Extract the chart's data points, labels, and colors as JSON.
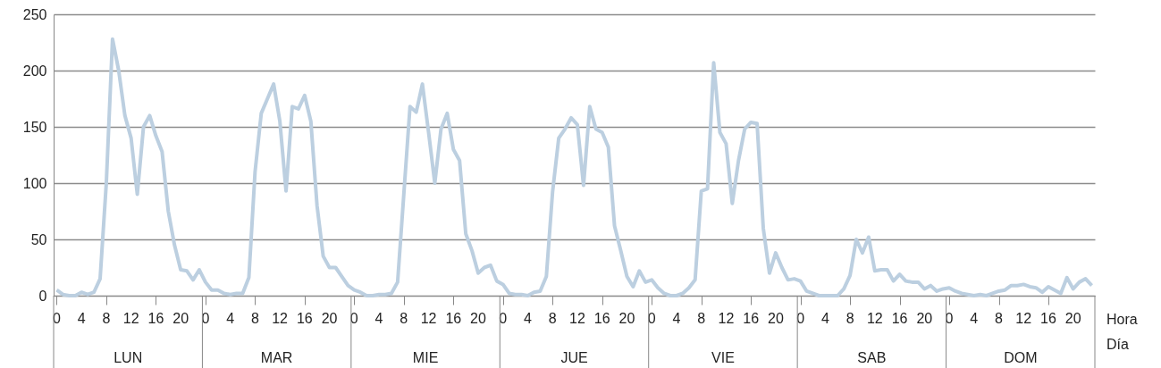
{
  "chart_data": {
    "type": "line",
    "categories": [
      "0",
      null,
      null,
      null,
      "4",
      null,
      null,
      null,
      "8",
      null,
      null,
      null,
      "12",
      null,
      null,
      null,
      "16",
      null,
      null,
      null,
      "20",
      null,
      null,
      null,
      "0",
      null,
      null,
      null,
      "4",
      null,
      null,
      null,
      "8",
      null,
      null,
      null,
      "12",
      null,
      null,
      null,
      "16",
      null,
      null,
      null,
      "20",
      null,
      null,
      null,
      "0",
      null,
      null,
      null,
      "4",
      null,
      null,
      null,
      "8",
      null,
      null,
      null,
      "12",
      null,
      null,
      null,
      "16",
      null,
      null,
      null,
      "20",
      null,
      null,
      null,
      "0",
      null,
      null,
      null,
      "4",
      null,
      null,
      null,
      "8",
      null,
      null,
      null,
      "12",
      null,
      null,
      null,
      "16",
      null,
      null,
      null,
      "20",
      null,
      null,
      null,
      "0",
      null,
      null,
      null,
      "4",
      null,
      null,
      null,
      "8",
      null,
      null,
      null,
      "12",
      null,
      null,
      null,
      "16",
      null,
      null,
      null,
      "20",
      null,
      null,
      null,
      "0",
      null,
      null,
      null,
      "4",
      null,
      null,
      null,
      "8",
      null,
      null,
      null,
      "12",
      null,
      null,
      null,
      "16",
      null,
      null,
      null,
      "20",
      null,
      null,
      null,
      "0",
      null,
      null,
      null,
      "4",
      null,
      null,
      null,
      "8",
      null,
      null,
      null,
      "12",
      null,
      null,
      null,
      "16",
      null,
      null,
      null,
      "20",
      null,
      null,
      null
    ],
    "series": [
      {
        "color": "#bccfe0",
        "values": [
          5,
          1,
          0,
          0,
          3,
          1,
          3,
          15,
          100,
          228,
          200,
          160,
          140,
          90,
          150,
          160,
          142,
          128,
          75,
          45,
          23,
          22,
          14,
          23,
          12,
          5,
          5,
          2,
          1,
          2,
          2,
          16,
          110,
          162,
          175,
          188,
          155,
          93,
          168,
          166,
          178,
          155,
          80,
          35,
          25,
          25,
          17,
          9,
          5,
          3,
          0,
          0,
          1,
          1,
          2,
          12,
          90,
          168,
          163,
          188,
          145,
          100,
          148,
          162,
          130,
          120,
          55,
          40,
          20,
          25,
          27,
          13,
          10,
          2,
          1,
          1,
          0,
          3,
          4,
          17,
          92,
          140,
          148,
          158,
          152,
          98,
          168,
          148,
          145,
          132,
          62,
          40,
          17,
          8,
          22,
          12,
          14,
          7,
          2,
          0,
          0,
          2,
          7,
          14,
          93,
          95,
          207,
          145,
          135,
          82,
          120,
          148,
          154,
          153,
          60,
          20,
          38,
          25,
          14,
          15,
          13,
          4,
          2,
          0,
          0,
          0,
          0,
          6,
          18,
          50,
          38,
          52,
          22,
          23,
          23,
          13,
          19,
          13,
          12,
          12,
          6,
          9,
          4,
          6,
          7,
          4,
          2,
          1,
          0,
          1,
          0,
          2,
          4,
          5,
          9,
          9,
          10,
          8,
          7,
          3,
          8,
          5,
          2,
          16,
          6,
          12,
          15,
          9
        ]
      }
    ],
    "xlabel": "Hora",
    "annotations": [
      "LUN",
      "MAR",
      "MIE",
      "JUE",
      "VIE",
      "SAB",
      "DOM",
      "Día"
    ],
    "ylim": [
      0,
      250
    ],
    "yticks": [
      0,
      50,
      100,
      150,
      200,
      250
    ],
    "grid": "y",
    "marker": "none",
    "line_style": "solid"
  }
}
